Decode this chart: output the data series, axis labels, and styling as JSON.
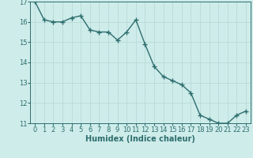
{
  "x": [
    0,
    1,
    2,
    3,
    4,
    5,
    6,
    7,
    8,
    9,
    10,
    11,
    12,
    13,
    14,
    15,
    16,
    17,
    18,
    19,
    20,
    21,
    22,
    23
  ],
  "y": [
    17.0,
    16.1,
    16.0,
    16.0,
    16.2,
    16.3,
    15.6,
    15.5,
    15.5,
    15.1,
    15.5,
    16.1,
    14.9,
    13.8,
    13.3,
    13.1,
    12.9,
    12.5,
    11.4,
    11.2,
    11.0,
    11.0,
    11.4,
    11.6
  ],
  "xlabel": "Humidex (Indice chaleur)",
  "ylabel": "",
  "ylim_min": 11,
  "ylim_max": 17,
  "xlim_min": -0.5,
  "xlim_max": 23.5,
  "yticks": [
    11,
    12,
    13,
    14,
    15,
    16,
    17
  ],
  "xticks": [
    0,
    1,
    2,
    3,
    4,
    5,
    6,
    7,
    8,
    9,
    10,
    11,
    12,
    13,
    14,
    15,
    16,
    17,
    18,
    19,
    20,
    21,
    22,
    23
  ],
  "line_color": "#2d6e6e",
  "marker_color": "#2d6e6e",
  "bg_color": "#ceecea",
  "grid_color": "#b8dbd8",
  "axis_color": "#2d6e6e",
  "tick_label_color": "#2d6e6e",
  "xlabel_color": "#2d6e6e",
  "marker": "+",
  "marker_size": 4,
  "line_width": 1.0,
  "tick_fontsize": 6,
  "xlabel_fontsize": 7
}
